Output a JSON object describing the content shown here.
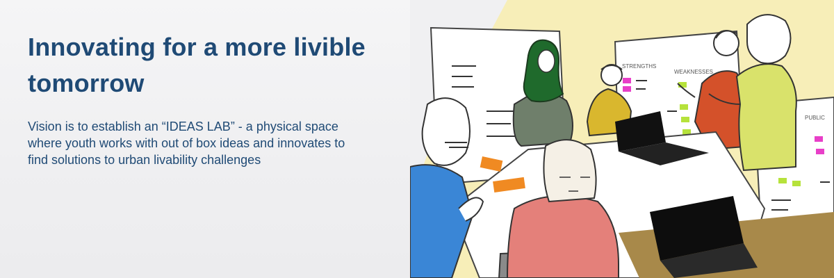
{
  "headline": "Innovating for a more livible tomorrow",
  "body": "Vision is to establish an “IDEAS LAB” - a physical space where youth works with out of box ideas and innovates to find solutions to urban livability challenges",
  "illustration": {
    "subject": "people-collaborating-workshop",
    "board_labels": {
      "strengths": "STRENGTHS",
      "weaknesses": "WEAKNESSES",
      "public": "PUBLIC"
    }
  },
  "colors": {
    "headline": "#1f4a75",
    "background": "#efeff1",
    "illustration_bg": "#f7eeb8",
    "table": "#a8894a"
  }
}
